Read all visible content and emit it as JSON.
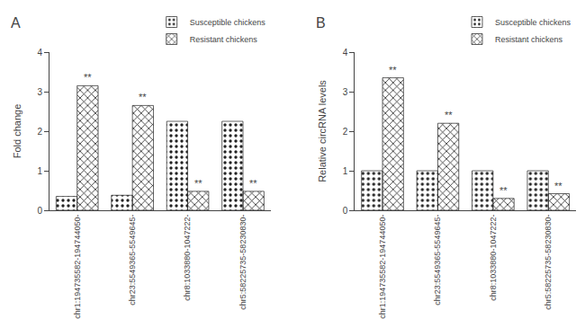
{
  "chart_data": [
    {
      "type": "bar",
      "title": "A",
      "y_label": "Fold change",
      "categories": [
        "chr1:194735582-194744050-",
        "chr23:5549365-5549645-",
        "chr8:1033880-1047222-",
        "chr5:58225735-58230830-"
      ],
      "series": [
        {
          "name": "Susceptible chickens",
          "values": [
            0.35,
            0.38,
            2.25,
            2.25
          ]
        },
        {
          "name": "Resistant chickens",
          "values": [
            3.15,
            2.65,
            0.48,
            0.48
          ]
        }
      ],
      "annotations": [
        {
          "text": "**",
          "category": "chr1:194735582-194744050-",
          "series": "Resistant chickens"
        },
        {
          "text": "**",
          "category": "chr23:5549365-5549645-",
          "series": "Resistant chickens"
        },
        {
          "text": "**",
          "category": "chr8:1033880-1047222-",
          "series": "Resistant chickens"
        },
        {
          "text": "**",
          "category": "chr5:58225735-58230830-",
          "series": "Resistant chickens"
        }
      ],
      "ylim": [
        0,
        4
      ],
      "yticks": [
        0,
        1,
        2,
        3,
        4
      ],
      "grid": false,
      "legend": "upper right"
    },
    {
      "type": "bar",
      "title": "B",
      "y_label": "Relative circRNA levels",
      "categories": [
        "chr1:194735582-194744050-",
        "chr23:5549365-5549645-",
        "chr8:1033880-1047222-",
        "chr5:58225735-58230830-"
      ],
      "series": [
        {
          "name": "Susceptible chickens",
          "values": [
            1.0,
            1.0,
            1.0,
            1.0
          ]
        },
        {
          "name": "Resistant chickens",
          "values": [
            3.35,
            2.2,
            0.3,
            0.42
          ]
        }
      ],
      "annotations": [
        {
          "text": "**",
          "category": "chr1:194735582-194744050-",
          "series": "Resistant chickens"
        },
        {
          "text": "**",
          "category": "chr23:5549365-5549645-",
          "series": "Resistant chickens"
        },
        {
          "text": "**",
          "category": "chr8:1033880-1047222-",
          "series": "Resistant chickens"
        },
        {
          "text": "**",
          "category": "chr5:58225735-58230830-",
          "series": "Resistant chickens"
        }
      ],
      "ylim": [
        0,
        4
      ],
      "yticks": [
        0,
        1,
        2,
        3,
        4
      ],
      "grid": false,
      "legend": "upper right"
    }
  ]
}
